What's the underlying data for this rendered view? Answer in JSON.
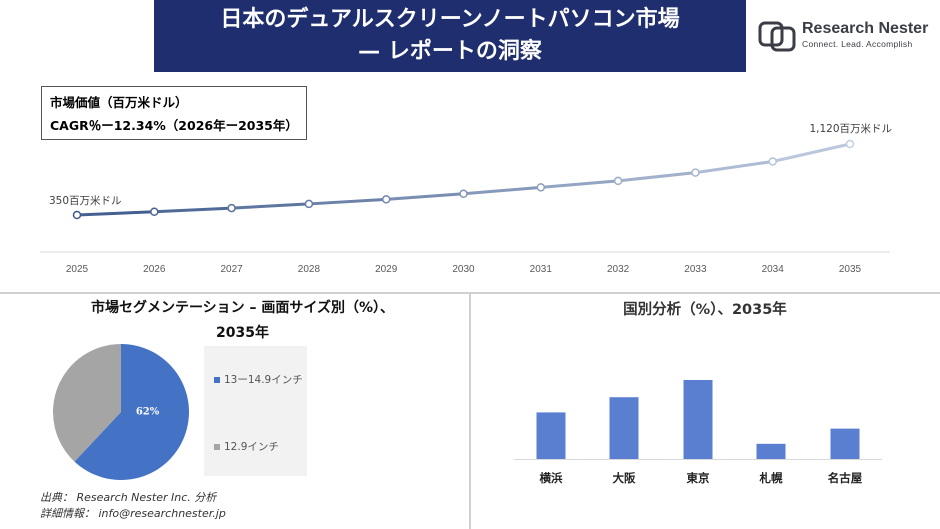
{
  "header": {
    "title_line1": "日本のデュアルスクリーンノートパソコン市場",
    "title_line2": "— レポートの洞察"
  },
  "logo": {
    "name": "Research Nester",
    "tagline": "Connect. Lead. Accomplish",
    "icon": "research-nester-logo"
  },
  "info_box": {
    "market_value_label": "市場価値（百万米ドル）",
    "cagr_label": "CAGR％ー12.34%（2026年ー2035年）"
  },
  "chart_data": [
    {
      "type": "line",
      "x": [
        "2025",
        "2026",
        "2027",
        "2028",
        "2029",
        "2030",
        "2031",
        "2032",
        "2033",
        "2034",
        "2035"
      ],
      "values": [
        350,
        385,
        425,
        470,
        520,
        580,
        650,
        720,
        810,
        930,
        1120
      ],
      "start_label": "350百万米ドル",
      "end_label": "1,120百万米ドル",
      "colors": {
        "start": "#3d5a8c",
        "end": "#c2cde0"
      }
    },
    {
      "type": "pie",
      "title_line1": "市場セグメンテーション – 画面サイズ別（%）、",
      "title_line2": "2035年",
      "slices": [
        {
          "label": "13ー14.9インチ",
          "value": 62,
          "color": "#4472c4",
          "data_label": "62%"
        },
        {
          "label": "12.9インチ",
          "value": 38,
          "color": "#a5a5a5"
        }
      ]
    },
    {
      "type": "bar",
      "title": "国別分析（%）、2035年",
      "categories": [
        "横浜",
        "大阪",
        "東京",
        "札幌",
        "名古屋"
      ],
      "values": [
        46,
        61,
        78,
        15,
        30
      ],
      "color": "#5b7fd0"
    }
  ],
  "source": {
    "line1": "出典： Research Nester Inc. 分析",
    "line2": "詳細情報： info@researchnester.jp"
  }
}
